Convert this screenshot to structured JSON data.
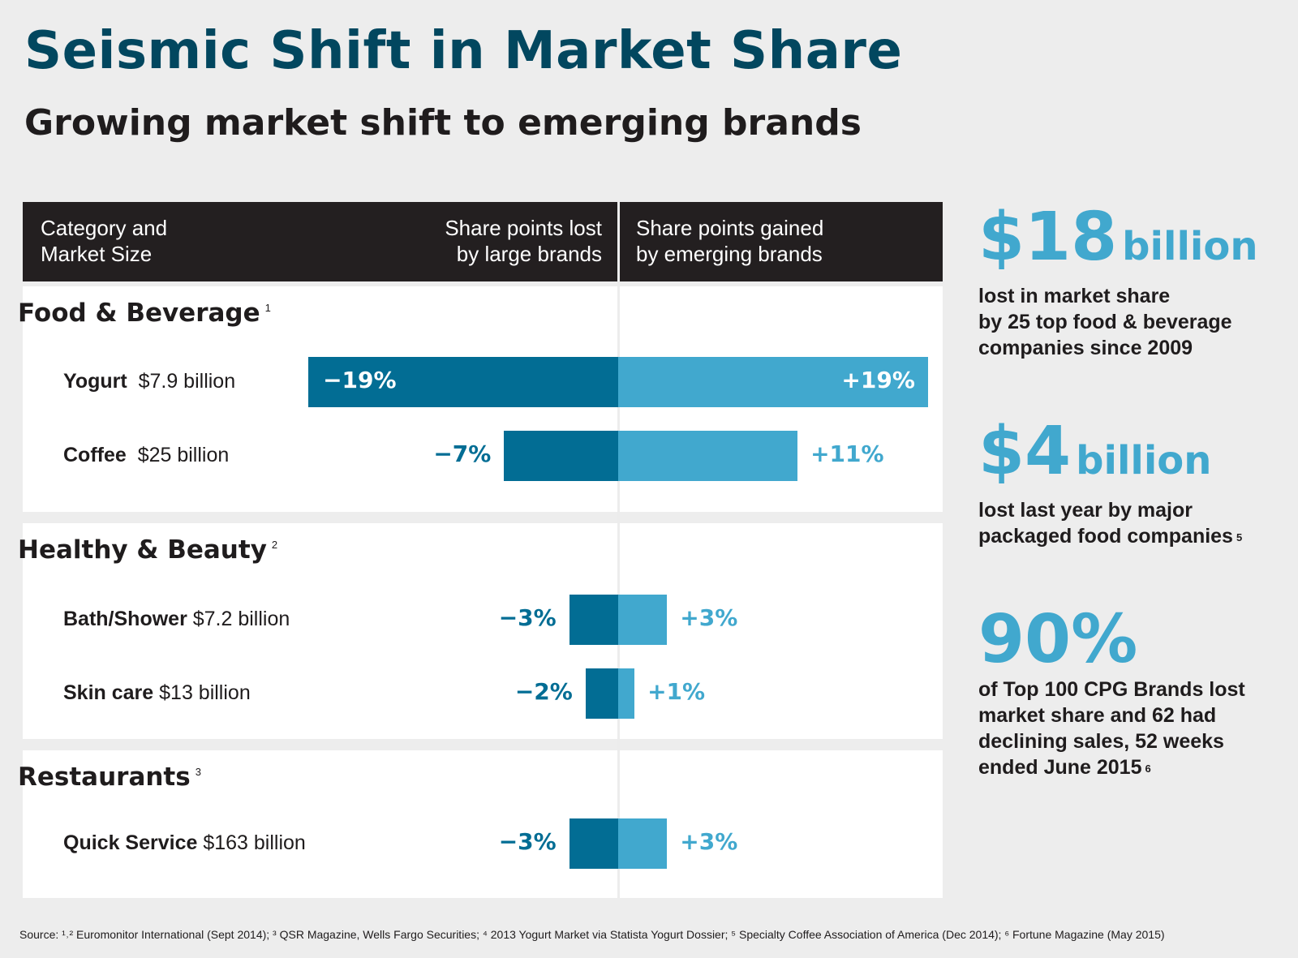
{
  "title": "Seismic Shift in Market Share",
  "subtitle": "Growing market shift to emerging brands",
  "colors": {
    "title": "#02475f",
    "loss": "#026d94",
    "gain": "#41a8ce",
    "header_bg": "#231f20",
    "page_bg": "#ededed"
  },
  "header": {
    "col1": [
      "Category and",
      "Market Size"
    ],
    "col2": [
      "Share points lost",
      "by large brands"
    ],
    "col3": [
      "Share points gained",
      "by emerging brands"
    ]
  },
  "chart_data": {
    "type": "bar",
    "orientation": "diverging-horizontal",
    "title": "Seismic Shift in Market Share",
    "subtitle": "Growing market shift to emerging brands",
    "xlabel_left": "Share points lost by large brands",
    "xlabel_right": "Share points gained by emerging brands",
    "ylabel": "Category and Market Size",
    "unit": "%",
    "xlim": [
      -19,
      19
    ],
    "groups": [
      {
        "name": "Food & Beverage",
        "footnote": "1",
        "rows": [
          {
            "category": "Yogurt",
            "market_size": "$7.9 billion",
            "lost": -19,
            "gained": 19,
            "lost_label": "-19%",
            "gained_label": "+19%"
          },
          {
            "category": "Coffee",
            "market_size": "$25 billion",
            "lost": -7,
            "gained": 11,
            "lost_label": "-7%",
            "gained_label": "+11%"
          }
        ]
      },
      {
        "name": "Healthy & Beauty",
        "footnote": "2",
        "rows": [
          {
            "category": "Bath/Shower",
            "market_size": "$7.2 billion",
            "lost": -3,
            "gained": 3,
            "lost_label": "-3%",
            "gained_label": "+3%"
          },
          {
            "category": "Skin care",
            "market_size": "$13 billion",
            "lost": -2,
            "gained": 1,
            "lost_label": "-2%",
            "gained_label": "+1%"
          }
        ]
      },
      {
        "name": "Restaurants",
        "footnote": "3",
        "rows": [
          {
            "category": "Quick Service",
            "market_size": "$163 billion",
            "lost": -3,
            "gained": 3,
            "lost_label": "-3%",
            "gained_label": "+3%"
          }
        ]
      }
    ],
    "series": [
      {
        "name": "Share points lost by large brands",
        "values": [
          -19,
          -7,
          -3,
          -2,
          -3
        ]
      },
      {
        "name": "Share points gained by emerging brands",
        "values": [
          19,
          11,
          3,
          1,
          3
        ]
      }
    ],
    "categories": [
      "Yogurt",
      "Coffee",
      "Bath/Shower",
      "Skin care",
      "Quick Service"
    ]
  },
  "stats": [
    {
      "big": "$18",
      "unit": "billion",
      "lines": [
        "lost in market share",
        "by 25 top food & beverage",
        "companies since 2009"
      ],
      "footnote": ""
    },
    {
      "big": "$4",
      "unit": "billion",
      "lines": [
        "lost last year by major",
        "packaged food companies"
      ],
      "footnote": "5"
    },
    {
      "big": "90%",
      "unit": "",
      "lines": [
        "of Top 100 CPG Brands lost",
        "market share and 62 had",
        "declining sales, 52 weeks",
        "ended June 2015"
      ],
      "footnote": "6"
    }
  ],
  "source": "Source: ¹˒² Euromonitor International (Sept 2014); ³ QSR Magazine, Wells Fargo Securities; ⁴ 2013 Yogurt Market via Statista Yogurt Dossier; ⁵ Specialty Coffee Association of America (Dec 2014); ⁶ Fortune Magazine (May 2015)"
}
